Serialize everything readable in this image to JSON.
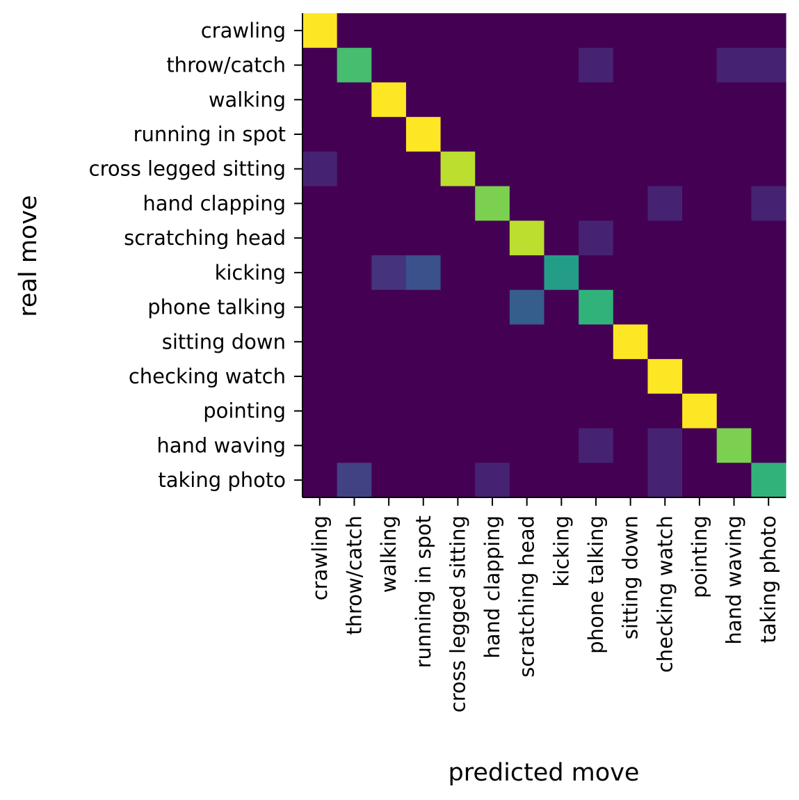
{
  "chart_data": {
    "type": "heatmap",
    "title": "",
    "xlabel": "predicted move",
    "ylabel": "real move",
    "colormap": "viridis",
    "grid": false,
    "value_range": [
      0,
      1
    ],
    "rows": [
      "crawling",
      "throw/catch",
      "walking",
      "running in spot",
      "cross legged sitting",
      "hand clapping",
      "scratching head",
      "kicking",
      "phone talking",
      "sitting down",
      "checking watch",
      "pointing",
      "hand waving",
      "taking photo"
    ],
    "columns": [
      "crawling",
      "throw/catch",
      "walking",
      "running in spot",
      "cross legged sitting",
      "hand clapping",
      "scratching head",
      "kicking",
      "phone talking",
      "sitting down",
      "checking watch",
      "pointing",
      "hand waving",
      "taking photo"
    ],
    "values": [
      [
        1.0,
        0,
        0,
        0,
        0,
        0,
        0,
        0,
        0,
        0,
        0,
        0,
        0,
        0
      ],
      [
        0,
        0.7,
        0,
        0,
        0,
        0,
        0,
        0,
        0.1,
        0,
        0,
        0,
        0.1,
        0.1
      ],
      [
        0,
        0,
        1.0,
        0,
        0,
        0,
        0,
        0,
        0,
        0,
        0,
        0,
        0,
        0
      ],
      [
        0,
        0,
        0,
        1.0,
        0,
        0,
        0,
        0,
        0,
        0,
        0,
        0,
        0,
        0
      ],
      [
        0.1,
        0,
        0,
        0,
        0.9,
        0,
        0,
        0,
        0,
        0,
        0,
        0,
        0,
        0
      ],
      [
        0,
        0,
        0,
        0,
        0,
        0.8,
        0,
        0,
        0,
        0,
        0.1,
        0,
        0,
        0.1
      ],
      [
        0,
        0,
        0,
        0,
        0,
        0,
        0.9,
        0,
        0.1,
        0,
        0,
        0,
        0,
        0
      ],
      [
        0,
        0,
        0.15,
        0.25,
        0,
        0,
        0,
        0.55,
        0,
        0,
        0,
        0,
        0,
        0
      ],
      [
        0,
        0,
        0,
        0,
        0,
        0,
        0.3,
        0,
        0.65,
        0,
        0,
        0,
        0,
        0
      ],
      [
        0,
        0,
        0,
        0,
        0,
        0,
        0,
        0,
        0,
        1.0,
        0,
        0,
        0,
        0
      ],
      [
        0,
        0,
        0,
        0,
        0,
        0,
        0,
        0,
        0,
        0,
        1.0,
        0,
        0,
        0
      ],
      [
        0,
        0,
        0,
        0,
        0,
        0,
        0,
        0,
        0,
        0,
        0,
        1.0,
        0,
        0
      ],
      [
        0,
        0,
        0,
        0,
        0,
        0,
        0,
        0,
        0.1,
        0,
        0.1,
        0,
        0.8,
        0
      ],
      [
        0,
        0.2,
        0,
        0,
        0,
        0.1,
        0,
        0,
        0,
        0,
        0.1,
        0,
        0,
        0.65
      ]
    ]
  }
}
